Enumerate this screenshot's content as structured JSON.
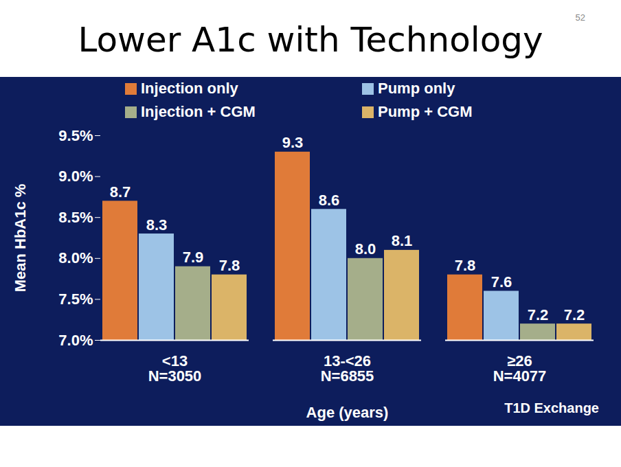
{
  "chart_data": {
    "type": "bar",
    "title": "Lower A1c with Technology",
    "annotations": [
      "52",
      "T1D Exchange"
    ],
    "x_label": "Age (years)",
    "y_label": "Mean HbA1c %",
    "categories": [
      "<13\nN=3050",
      "13-<26\nN=6855",
      "≥26\nN=4077"
    ],
    "series": [
      {
        "name": "Injection only",
        "color": "#e07b39",
        "values": [
          8.7,
          9.3,
          7.8
        ],
        "value_labels": [
          "8.7",
          "9.3",
          "7.8"
        ]
      },
      {
        "name": "Pump only",
        "color": "#9dc3e6",
        "values": [
          8.3,
          8.6,
          7.6
        ],
        "value_labels": [
          "8.3",
          "8.6",
          "7.6"
        ]
      },
      {
        "name": "Injection + CGM",
        "color": "#a5ae8a",
        "values": [
          7.9,
          8.0,
          7.2
        ],
        "value_labels": [
          "7.9",
          "8.0",
          "7.2"
        ]
      },
      {
        "name": "Pump + CGM",
        "color": "#dbb468",
        "values": [
          7.8,
          8.1,
          7.2
        ],
        "value_labels": [
          "7.8",
          "8.1",
          "7.2"
        ]
      }
    ],
    "ylim": [
      7,
      9.5
    ],
    "yticks": [
      {
        "value": 7,
        "label": "7.0%"
      },
      {
        "value": 7.5,
        "label": "7.5%"
      },
      {
        "value": 8,
        "label": "8.0%"
      },
      {
        "value": 8.5,
        "label": "8.5%"
      },
      {
        "value": 9,
        "label": "9.0%"
      },
      {
        "value": 9.5,
        "label": "9.5%"
      }
    ],
    "grid": false,
    "legend": "top",
    "data_labels": true
  }
}
